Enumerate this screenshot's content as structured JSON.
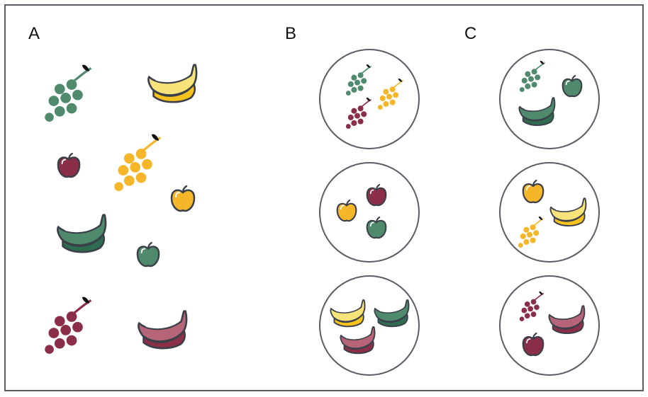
{
  "panels": {
    "a": {
      "label": "A"
    },
    "b": {
      "label": "B"
    },
    "c": {
      "label": "C"
    }
  },
  "colors": {
    "green": "#4e8a6b",
    "green_dark": "#2f6b4f",
    "yellow": "#f6b62a",
    "yellow_light": "#f8e27a",
    "maroon": "#8b2e48",
    "maroon_light": "#b56577",
    "outline": "#3a3f4a",
    "frame": "#5a5d66"
  },
  "fruits": {
    "panel_a": [
      "green-grapes",
      "yellow-banana",
      "maroon-apple",
      "yellow-grapes",
      "yellow-apple",
      "green-banana",
      "green-apple",
      "maroon-grapes",
      "maroon-banana"
    ],
    "panel_b_groups": [
      [
        "green-grapes",
        "yellow-grapes",
        "maroon-grapes"
      ],
      [
        "yellow-apple",
        "maroon-apple",
        "green-apple"
      ],
      [
        "yellow-banana",
        "green-banana",
        "maroon-banana"
      ]
    ],
    "panel_c_groups": [
      [
        "green-grapes",
        "green-apple",
        "green-banana"
      ],
      [
        "yellow-apple",
        "yellow-banana",
        "yellow-grapes"
      ],
      [
        "maroon-grapes",
        "maroon-banana",
        "maroon-apple"
      ]
    ]
  }
}
